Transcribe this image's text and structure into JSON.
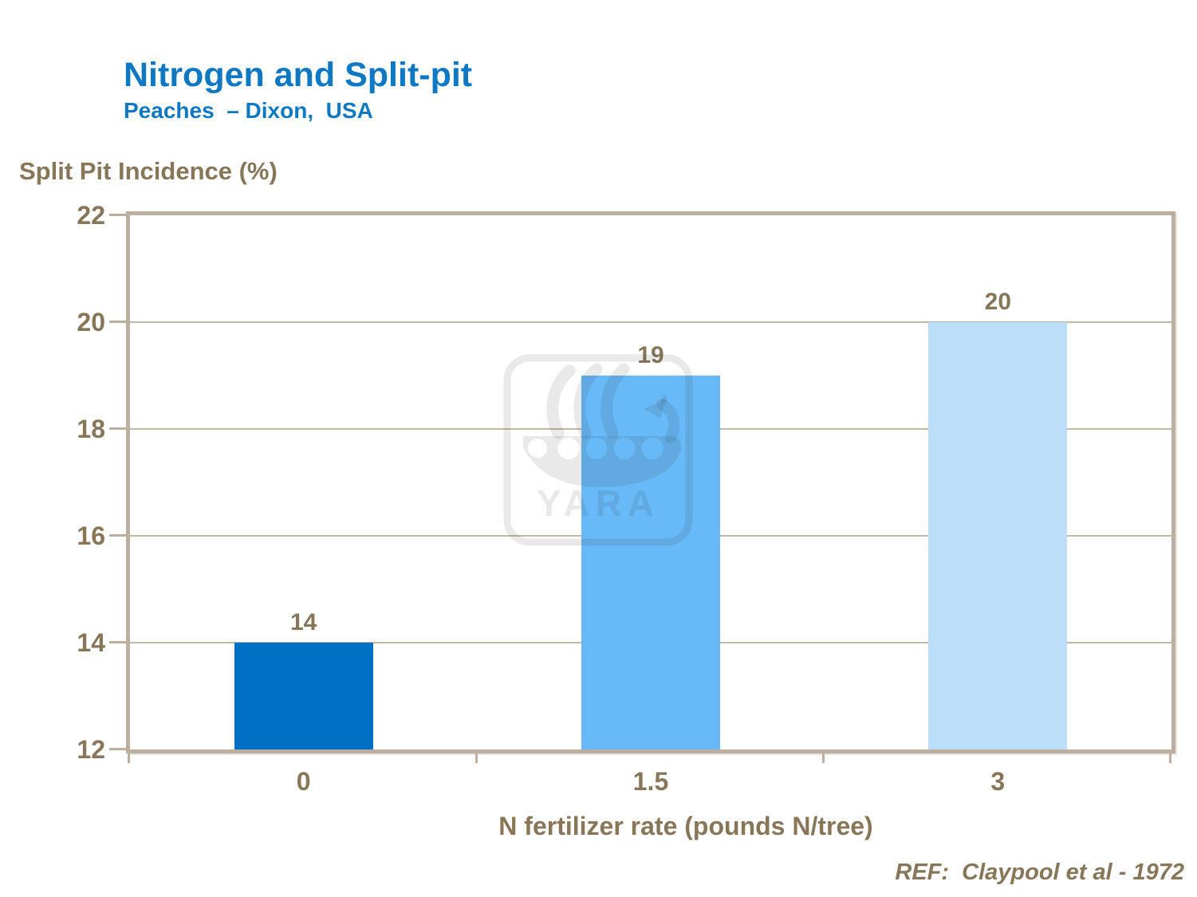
{
  "header": {
    "title": "Nitrogen and Split-pit",
    "subtitle": "Peaches  – Dixon,  USA"
  },
  "chart_data": {
    "type": "bar",
    "categories": [
      "0",
      "1.5",
      "3"
    ],
    "values": [
      14,
      19,
      20
    ],
    "data_labels": [
      "14",
      "19",
      "20"
    ],
    "bar_colors": [
      "#0070C4",
      "#67B9F7",
      "#BDDEF9"
    ],
    "ylabel": "Split Pit Incidence (%)",
    "xlabel": "N fertilizer rate (pounds N/tree)",
    "ylim": [
      12,
      22
    ],
    "y_ticks": [
      22,
      20,
      18,
      16,
      14,
      12
    ],
    "grid": "horizontal gridlines on",
    "legend": "none"
  },
  "watermark": {
    "logo": "yara-viking-ship-logo",
    "text": "YARA"
  },
  "footer": {
    "reference": "REF:  Claypool et al - 1972"
  },
  "colors": {
    "title_blue": "#0F78C3",
    "text_brown": "#887659",
    "axis_tan": "#BCAF9F",
    "grid_tan": "#C3B7A8",
    "watermark_gray": "rgba(40,40,40,0.10)"
  }
}
